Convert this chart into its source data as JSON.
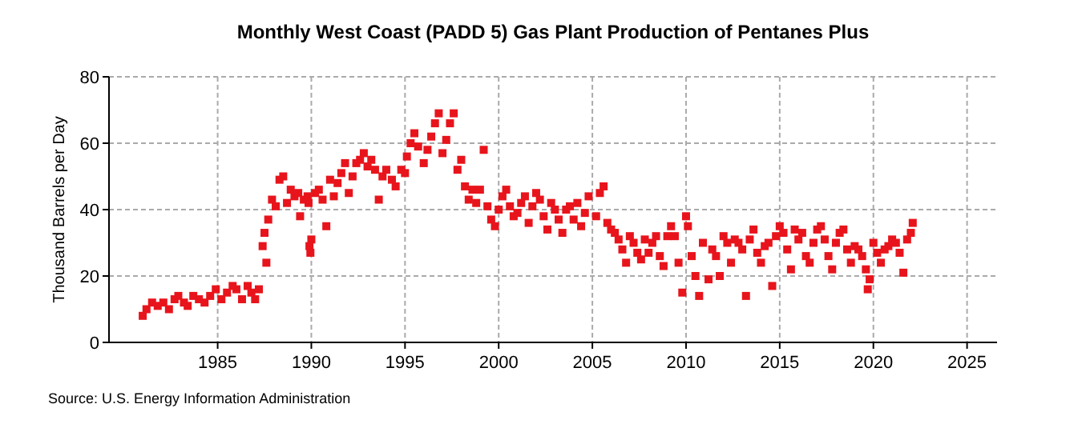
{
  "chart_data": {
    "type": "scatter",
    "title": "Monthly West Coast (PADD 5) Gas Plant Production of Pentanes Plus",
    "ylabel": "Thousand Barrels per Day",
    "annotations": [
      "Source: U.S. Energy Information Administration"
    ],
    "marker": "square",
    "grid": true,
    "xlim": [
      1979.2,
      2026.6
    ],
    "xticks": [
      1985,
      1990,
      1995,
      2000,
      2005,
      2010,
      2015,
      2020,
      2025
    ],
    "ylim": [
      0,
      80
    ],
    "yticks": [
      0,
      20,
      40,
      60,
      80
    ],
    "series": [
      {
        "color": "#e8141c",
        "x": [
          1981.0,
          1981.2,
          1981.5,
          1981.8,
          1982.1,
          1982.4,
          1982.7,
          1982.9,
          1983.2,
          1983.4,
          1983.7,
          1984.0,
          1984.3,
          1984.6,
          1984.9,
          1985.2,
          1985.5,
          1985.8,
          1986.0,
          1986.3,
          1986.6,
          1986.8,
          1987.0,
          1987.2,
          1987.4,
          1987.5,
          1987.6,
          1987.7,
          1987.9,
          1988.1,
          1988.3,
          1988.5,
          1988.7,
          1988.9,
          1989.1,
          1989.3,
          1989.4,
          1989.6,
          1989.8,
          1989.85,
          1989.9,
          1989.95,
          1990.0,
          1990.2,
          1990.4,
          1990.6,
          1990.8,
          1991.0,
          1991.2,
          1991.4,
          1991.6,
          1991.8,
          1992.0,
          1992.2,
          1992.4,
          1992.6,
          1992.8,
          1993.0,
          1993.2,
          1993.4,
          1993.6,
          1993.8,
          1994.0,
          1994.3,
          1994.5,
          1994.8,
          1995.0,
          1995.1,
          1995.3,
          1995.5,
          1995.7,
          1996.0,
          1996.2,
          1996.4,
          1996.6,
          1996.8,
          1997.0,
          1997.2,
          1997.4,
          1997.6,
          1997.8,
          1998.0,
          1998.2,
          1998.4,
          1998.6,
          1998.8,
          1999.0,
          1999.2,
          1999.4,
          1999.6,
          1999.8,
          2000.0,
          2000.2,
          2000.4,
          2000.6,
          2000.8,
          2001.0,
          2001.2,
          2001.4,
          2001.6,
          2001.8,
          2002.0,
          2002.2,
          2002.4,
          2002.6,
          2002.8,
          2003.0,
          2003.2,
          2003.4,
          2003.6,
          2003.8,
          2004.0,
          2004.2,
          2004.4,
          2004.6,
          2004.8,
          2005.2,
          2005.4,
          2005.6,
          2005.8,
          2006.0,
          2006.2,
          2006.4,
          2006.6,
          2006.8,
          2007.0,
          2007.2,
          2007.4,
          2007.6,
          2007.8,
          2008.0,
          2008.2,
          2008.4,
          2008.6,
          2008.8,
          2009.0,
          2009.2,
          2009.4,
          2009.6,
          2009.8,
          2010.0,
          2010.1,
          2010.3,
          2010.5,
          2010.7,
          2010.9,
          2011.2,
          2011.4,
          2011.6,
          2011.8,
          2012.0,
          2012.2,
          2012.4,
          2012.6,
          2012.8,
          2013.0,
          2013.2,
          2013.4,
          2013.6,
          2013.8,
          2014.0,
          2014.2,
          2014.4,
          2014.6,
          2014.8,
          2015.0,
          2015.2,
          2015.4,
          2015.6,
          2015.8,
          2016.0,
          2016.2,
          2016.4,
          2016.6,
          2016.8,
          2017.0,
          2017.2,
          2017.4,
          2017.6,
          2017.8,
          2018.0,
          2018.2,
          2018.4,
          2018.6,
          2018.8,
          2019.0,
          2019.2,
          2019.4,
          2019.6,
          2019.7,
          2019.8,
          2020.0,
          2020.2,
          2020.4,
          2020.6,
          2020.8,
          2021.0,
          2021.2,
          2021.4,
          2021.6,
          2021.8,
          2022.0,
          2022.1
        ],
        "values": [
          8,
          10,
          12,
          11,
          12,
          10,
          13,
          14,
          12,
          11,
          14,
          13,
          12,
          14,
          16,
          13,
          15,
          17,
          16,
          13,
          17,
          15,
          13,
          16,
          29,
          33,
          24,
          37,
          43,
          41,
          49,
          50,
          42,
          46,
          44,
          45,
          38,
          43,
          44,
          42,
          29,
          27,
          31,
          45,
          46,
          43,
          35,
          49,
          44,
          48,
          51,
          54,
          45,
          50,
          54,
          55,
          57,
          53,
          55,
          52,
          43,
          50,
          52,
          49,
          47,
          52,
          51,
          56,
          60,
          63,
          59,
          54,
          58,
          62,
          66,
          69,
          57,
          61,
          66,
          69,
          52,
          55,
          47,
          43,
          46,
          42,
          46,
          58,
          41,
          37,
          35,
          40,
          44,
          46,
          41,
          38,
          39,
          42,
          44,
          36,
          41,
          45,
          43,
          38,
          34,
          42,
          40,
          37,
          33,
          40,
          41,
          37,
          42,
          35,
          39,
          44,
          38,
          45,
          47,
          36,
          34,
          33,
          31,
          28,
          24,
          32,
          30,
          27,
          25,
          31,
          27,
          30,
          32,
          26,
          23,
          32,
          35,
          32,
          24,
          15,
          38,
          35,
          26,
          20,
          14,
          30,
          19,
          28,
          26,
          20,
          32,
          30,
          24,
          31,
          30,
          28,
          14,
          31,
          34,
          27,
          24,
          29,
          30,
          17,
          32,
          35,
          33,
          28,
          22,
          34,
          31,
          33,
          26,
          24,
          30,
          34,
          35,
          31,
          26,
          22,
          30,
          33,
          34,
          28,
          24,
          29,
          28,
          26,
          22,
          16,
          19,
          30,
          27,
          24,
          28,
          29,
          31,
          30,
          27,
          21,
          31,
          33,
          36
        ]
      }
    ]
  }
}
